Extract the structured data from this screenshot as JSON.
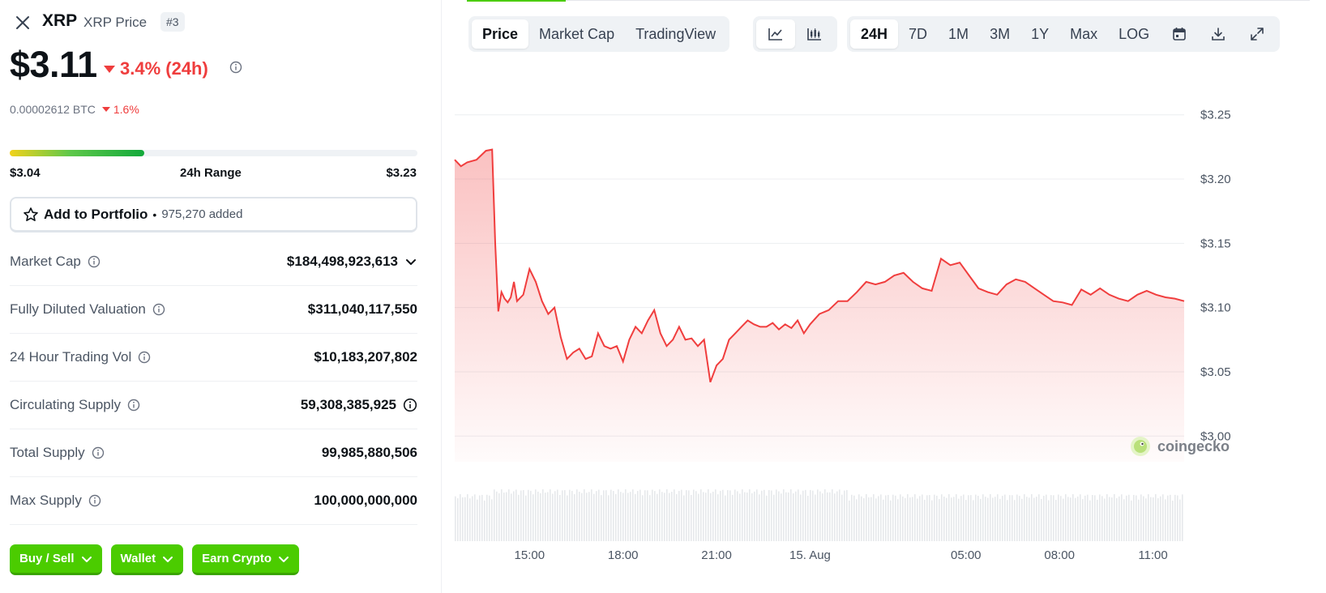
{
  "coin": {
    "name": "XRP",
    "subtitle": "XRP Price",
    "rank": "#3",
    "price": "$3.11",
    "change_24h": "3.4% (24h)",
    "btc_price": "0.00002612 BTC",
    "btc_change": "1.6%"
  },
  "range": {
    "low": "$3.04",
    "label": "24h Range",
    "high": "$3.23",
    "fill_fraction": 0.33
  },
  "portfolio": {
    "label": "Add to Portfolio",
    "separator": "•",
    "count": "975,270 added"
  },
  "stats": [
    {
      "label": "Market Cap",
      "value": "$184,498,923,613"
    },
    {
      "label": "Fully Diluted Valuation",
      "value": "$311,040,117,550"
    },
    {
      "label": "24 Hour Trading Vol",
      "value": "$10,183,207,802"
    },
    {
      "label": "Circulating Supply",
      "value": "59,308,385,925"
    },
    {
      "label": "Total Supply",
      "value": "99,985,880,506"
    },
    {
      "label": "Max Supply",
      "value": "100,000,000,000"
    }
  ],
  "actions": [
    {
      "label": "Buy / Sell"
    },
    {
      "label": "Wallet"
    },
    {
      "label": "Earn Crypto"
    }
  ],
  "toolbar": {
    "view_tabs": [
      "Price",
      "Market Cap",
      "TradingView"
    ],
    "active_view": "Price",
    "ranges": [
      "24H",
      "7D",
      "1M",
      "3M",
      "1Y",
      "Max",
      "LOG"
    ],
    "active_range": "24H"
  },
  "watermark": "coingecko",
  "colors": {
    "accent_green": "#4bcc00",
    "down_red": "#ef3d3d",
    "line_red": "#f03e3e"
  },
  "chart_data": {
    "type": "area",
    "title": "",
    "xlabel": "",
    "ylabel": "",
    "ylim": [
      2.98,
      3.27
    ],
    "yticks": [
      3.0,
      3.05,
      3.1,
      3.15,
      3.2,
      3.25
    ],
    "ytick_labels": [
      "$3.00",
      "$3.05",
      "$3.10",
      "$3.15",
      "$3.20",
      "$3.25"
    ],
    "xlim_hours": [
      12.6,
      11.6
    ],
    "x_tick_labels": [
      "15:00",
      "18:00",
      "21:00",
      "15. Aug",
      "05:00",
      "08:00",
      "11:00"
    ],
    "x_tick_hours": [
      15,
      18,
      21,
      24,
      29,
      32,
      35
    ],
    "grid": true,
    "series": [
      {
        "x_hours": [
          12.6,
          12.8,
          13.0,
          13.3,
          13.6,
          13.8,
          13.9,
          14.0,
          14.1,
          14.2,
          14.3,
          14.4,
          14.5,
          14.6,
          14.8,
          15.0,
          15.2,
          15.4,
          15.6,
          15.8,
          16.0,
          16.2,
          16.4,
          16.6,
          16.8,
          17.0,
          17.2,
          17.4,
          17.6,
          17.8,
          18.0,
          18.2,
          18.4,
          18.6,
          18.8,
          19.0,
          19.2,
          19.4,
          19.6,
          19.8,
          20.0,
          20.2,
          20.4,
          20.6,
          20.8,
          21.0,
          21.2,
          21.4,
          21.6,
          21.8,
          22.0,
          22.2,
          22.4,
          22.6,
          22.8,
          23.0,
          23.2,
          23.4,
          23.6,
          23.8,
          24.0,
          24.3,
          24.6,
          24.9,
          25.2,
          25.5,
          25.8,
          26.1,
          26.4,
          26.7,
          27.0,
          27.3,
          27.6,
          27.9,
          28.2,
          28.5,
          28.8,
          29.1,
          29.4,
          29.7,
          30.0,
          30.3,
          30.6,
          30.9,
          31.2,
          31.5,
          31.8,
          32.1,
          32.4,
          32.7,
          33.0,
          33.3,
          33.6,
          33.9,
          34.2,
          34.5,
          34.8,
          35.1,
          35.4,
          35.7,
          36.0
        ],
        "y": [
          3.215,
          3.21,
          3.213,
          3.215,
          3.222,
          3.223,
          3.15,
          3.097,
          3.112,
          3.107,
          3.104,
          3.108,
          3.12,
          3.105,
          3.11,
          3.13,
          3.12,
          3.105,
          3.095,
          3.1,
          3.077,
          3.06,
          3.065,
          3.068,
          3.06,
          3.062,
          3.08,
          3.07,
          3.068,
          3.07,
          3.058,
          3.075,
          3.085,
          3.08,
          3.09,
          3.098,
          3.08,
          3.07,
          3.075,
          3.085,
          3.075,
          3.076,
          3.07,
          3.075,
          3.042,
          3.055,
          3.06,
          3.075,
          3.08,
          3.085,
          3.09,
          3.087,
          3.085,
          3.085,
          3.088,
          3.083,
          3.087,
          3.084,
          3.09,
          3.08,
          3.087,
          3.095,
          3.098,
          3.105,
          3.105,
          3.112,
          3.12,
          3.118,
          3.12,
          3.125,
          3.127,
          3.12,
          3.115,
          3.113,
          3.138,
          3.133,
          3.135,
          3.125,
          3.115,
          3.112,
          3.11,
          3.118,
          3.122,
          3.12,
          3.115,
          3.11,
          3.105,
          3.104,
          3.102,
          3.114,
          3.11,
          3.115,
          3.11,
          3.107,
          3.105,
          3.11,
          3.113,
          3.11,
          3.108,
          3.107,
          3.105
        ]
      }
    ]
  }
}
